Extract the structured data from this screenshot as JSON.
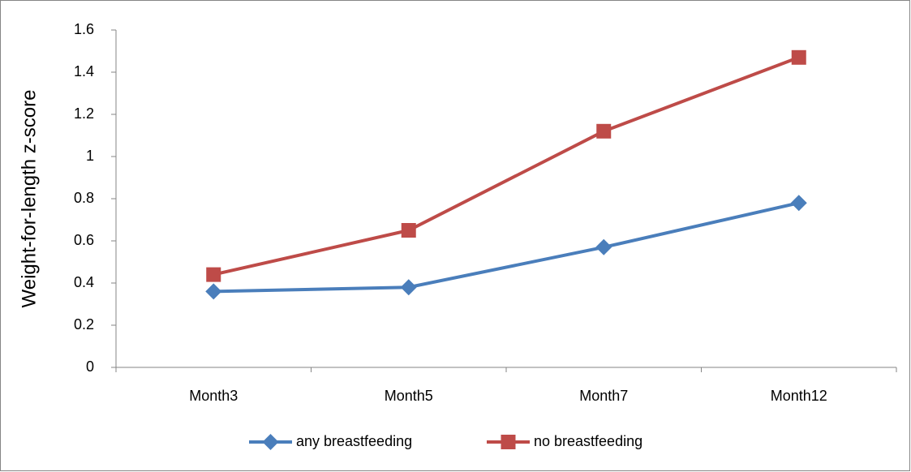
{
  "chart_data": {
    "type": "line",
    "y_label": "Weight-for-length z-score",
    "categories": [
      "Month3",
      "Month5",
      "Month7",
      "Month12"
    ],
    "series": [
      {
        "name": "any breastfeeding",
        "color": "#4a7ebb",
        "marker": "diamond",
        "values": [
          0.36,
          0.38,
          0.57,
          0.78
        ]
      },
      {
        "name": "no breastfeeding",
        "color": "#be4b48",
        "marker": "square",
        "values": [
          0.44,
          0.65,
          1.12,
          1.47
        ]
      }
    ],
    "ylim": [
      0,
      1.6
    ],
    "yticks": [
      0,
      0.2,
      0.4,
      0.6,
      0.8,
      1,
      1.2,
      1.4,
      1.6
    ],
    "grid": false,
    "legend": "bottom"
  }
}
